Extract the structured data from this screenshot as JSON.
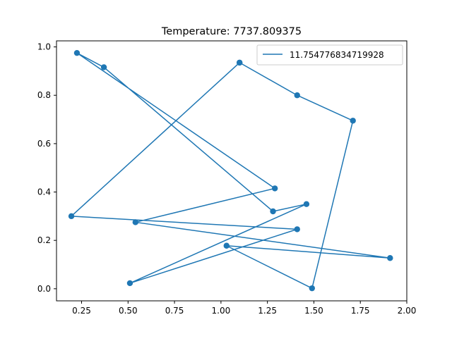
{
  "chart_data": {
    "type": "line",
    "title": "Temperature: 7737.809375",
    "xlabel": "",
    "ylabel": "",
    "xlim": [
      0.115,
      2.0
    ],
    "ylim": [
      -0.05,
      1.025
    ],
    "xticks": [
      "0.25",
      "0.50",
      "0.75",
      "1.00",
      "1.25",
      "1.50",
      "1.75",
      "2.00"
    ],
    "xtick_values": [
      0.25,
      0.5,
      0.75,
      1.0,
      1.25,
      1.5,
      1.75,
      2.0
    ],
    "yticks": [
      "0.0",
      "0.2",
      "0.4",
      "0.6",
      "0.8",
      "1.0"
    ],
    "ytick_values": [
      0.0,
      0.2,
      0.4,
      0.6,
      0.8,
      1.0
    ],
    "grid": false,
    "legend": "upper right",
    "series": [
      {
        "name": "11.754776834719928",
        "color": "#1f77b4",
        "marker": "circle",
        "x": [
          1.1,
          1.41,
          1.71,
          1.49,
          1.03,
          1.91,
          0.54,
          1.29,
          0.225,
          0.37,
          1.28,
          1.46,
          0.51,
          1.41,
          0.195,
          1.1
        ],
        "y": [
          0.935,
          0.8,
          0.695,
          0.002,
          0.178,
          0.127,
          0.275,
          0.415,
          0.975,
          0.916,
          0.32,
          0.35,
          0.023,
          0.246,
          0.3,
          0.935
        ]
      }
    ]
  }
}
